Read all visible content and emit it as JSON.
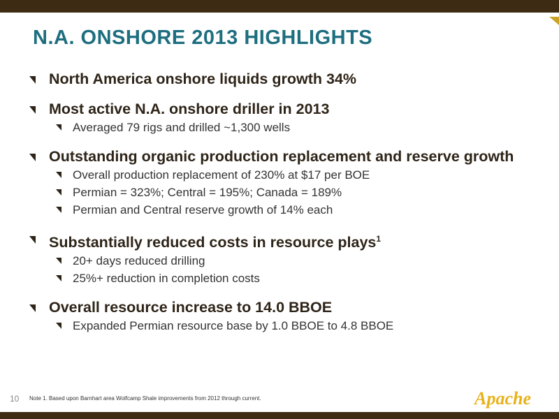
{
  "title": "N.A. ONSHORE 2013 HIGHLIGHTS",
  "bullets": {
    "b1": {
      "text": "North America onshore liquids growth 34%"
    },
    "b2": {
      "text": "Most active N.A. onshore driller in 2013",
      "sub": [
        "Averaged 79 rigs and drilled ~1,300 wells"
      ]
    },
    "b3": {
      "text": "Outstanding organic production replacement and reserve growth",
      "sub": [
        "Overall production replacement of 230% at $17 per BOE",
        "Permian = 323%; Central = 195%; Canada = 189%",
        "Permian and Central reserve growth of 14% each"
      ]
    },
    "b4": {
      "text": "Substantially reduced costs in resource plays",
      "sup": "1",
      "sub": [
        "20+ days reduced drilling",
        "25%+ reduction in completion costs"
      ]
    },
    "b5": {
      "text": "Overall resource increase to 14.0 BBOE",
      "sub": [
        "Expanded Permian resource base by 1.0 BBOE to 4.8 BBOE"
      ]
    }
  },
  "footer": {
    "page_number": "10",
    "footnote": "Note 1. Based upon Barnhart area Wolfcamp Shale improvements from 2012 through current.",
    "logo_text": "Apache"
  },
  "colors": {
    "title": "#1d6e7f",
    "frame": "#3d2b14",
    "logo": "#e8b21a",
    "text": "#2e2418"
  }
}
